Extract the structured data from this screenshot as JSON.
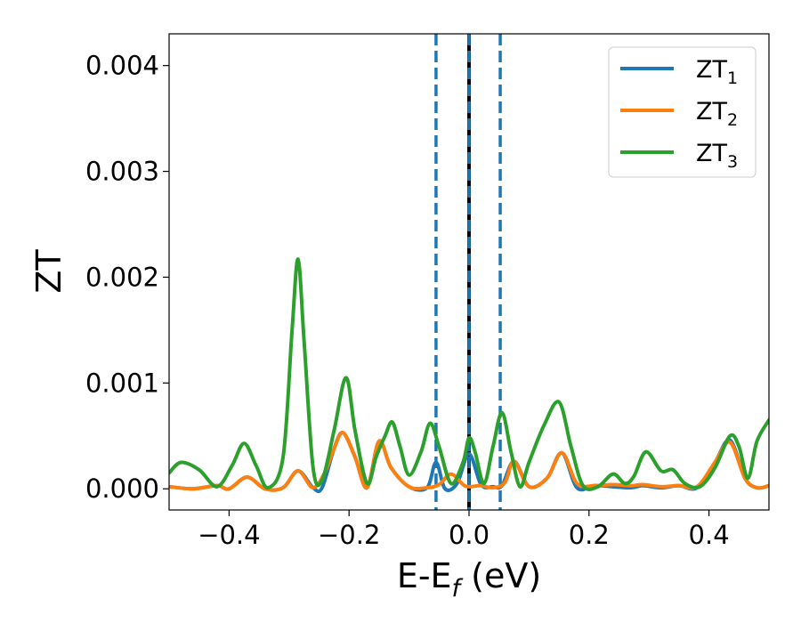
{
  "chart_data": {
    "type": "line",
    "title": "",
    "xlabel": {
      "main": "E-E",
      "sub": "f",
      "suffix": " (eV)"
    },
    "ylabel": "ZT",
    "xlim": [
      -0.5,
      0.5
    ],
    "ylim": [
      -0.0002,
      0.0043
    ],
    "x_ticks": [
      -0.4,
      -0.2,
      0.0,
      0.2,
      0.4
    ],
    "x_tick_labels": [
      "−0.4",
      "−0.2",
      "0.0",
      "0.2",
      "0.4"
    ],
    "y_ticks": [
      0.0,
      0.001,
      0.002,
      0.003,
      0.004
    ],
    "y_tick_labels": [
      "0.000",
      "0.001",
      "0.002",
      "0.003",
      "0.004"
    ],
    "grid": false,
    "legend_position": "top-right",
    "vlines": [
      {
        "x": -0.055,
        "style": "dashed",
        "color": "#1f77b4"
      },
      {
        "x": 0.0,
        "style": "solid",
        "color": "#000000"
      },
      {
        "x": 0.0,
        "style": "dashed",
        "color": "#1f77b4"
      },
      {
        "x": 0.052,
        "style": "dashed",
        "color": "#1f77b4"
      }
    ],
    "series": [
      {
        "name": "ZT",
        "name_sub": "1",
        "color": "#1f77b4",
        "x": [
          -0.5,
          -0.46,
          -0.42,
          -0.4,
          -0.37,
          -0.34,
          -0.31,
          -0.285,
          -0.26,
          -0.245,
          -0.225,
          -0.21,
          -0.19,
          -0.17,
          -0.15,
          -0.13,
          -0.1,
          -0.07,
          -0.055,
          -0.04,
          -0.02,
          0.0,
          0.02,
          0.04,
          0.055,
          0.075,
          0.1,
          0.13,
          0.155,
          0.18,
          0.21,
          0.24,
          0.27,
          0.29,
          0.32,
          0.35,
          0.38,
          0.41,
          0.435,
          0.46,
          0.48,
          0.5
        ],
        "y": [
          2e-05,
          0.0,
          3e-05,
          0.0,
          0.00011,
          0.0,
          1e-05,
          0.00017,
          1e-05,
          1e-05,
          0.00038,
          0.00053,
          0.0003,
          1e-05,
          0.00045,
          0.0002,
          2e-05,
          1e-05,
          0.00025,
          0.0,
          5e-05,
          0.00033,
          4e-05,
          2e-05,
          3e-05,
          0.00026,
          2e-05,
          0.0001,
          0.00034,
          1e-05,
          3e-05,
          2e-05,
          1e-05,
          3e-05,
          1e-05,
          3e-05,
          1e-05,
          0.00025,
          0.00046,
          0.0001,
          1e-05,
          3e-05
        ]
      },
      {
        "name": "ZT",
        "name_sub": "2",
        "color": "#ff7f0e",
        "x": [
          -0.5,
          -0.46,
          -0.42,
          -0.4,
          -0.37,
          -0.34,
          -0.31,
          -0.285,
          -0.26,
          -0.24,
          -0.225,
          -0.21,
          -0.19,
          -0.17,
          -0.15,
          -0.13,
          -0.1,
          -0.07,
          -0.05,
          -0.03,
          -0.01,
          0.0,
          0.02,
          0.04,
          0.06,
          0.075,
          0.1,
          0.13,
          0.155,
          0.18,
          0.21,
          0.24,
          0.27,
          0.29,
          0.32,
          0.35,
          0.38,
          0.41,
          0.435,
          0.46,
          0.48,
          0.5
        ],
        "y": [
          2e-05,
          0.0,
          3e-05,
          0.0,
          0.00011,
          0.0,
          1e-05,
          0.00017,
          1e-05,
          0.00016,
          0.00038,
          0.00053,
          0.0003,
          1e-05,
          0.00045,
          0.0002,
          2e-05,
          1e-05,
          4e-05,
          0.00014,
          4e-05,
          2e-05,
          3e-05,
          1e-05,
          6e-05,
          0.00026,
          2e-05,
          0.0001,
          0.00034,
          5e-05,
          3e-05,
          4e-05,
          3e-05,
          4e-05,
          2e-05,
          3e-05,
          2e-05,
          0.00025,
          0.00044,
          0.0001,
          1e-05,
          3e-05
        ]
      },
      {
        "name": "ZT",
        "name_sub": "3",
        "color": "#2ca02c",
        "x": [
          -0.5,
          -0.48,
          -0.45,
          -0.42,
          -0.395,
          -0.375,
          -0.355,
          -0.335,
          -0.31,
          -0.295,
          -0.285,
          -0.275,
          -0.26,
          -0.245,
          -0.225,
          -0.205,
          -0.19,
          -0.17,
          -0.155,
          -0.14,
          -0.128,
          -0.115,
          -0.1,
          -0.08,
          -0.065,
          -0.05,
          -0.03,
          -0.01,
          0.0,
          0.01,
          0.025,
          0.04,
          0.055,
          0.07,
          0.085,
          0.1,
          0.125,
          0.15,
          0.17,
          0.19,
          0.215,
          0.24,
          0.26,
          0.275,
          0.295,
          0.32,
          0.34,
          0.36,
          0.385,
          0.41,
          0.435,
          0.45,
          0.465,
          0.48,
          0.5
        ],
        "y": [
          0.00015,
          0.00025,
          0.00018,
          2e-05,
          0.00022,
          0.00043,
          0.00022,
          1e-05,
          0.0003,
          0.0015,
          0.00217,
          0.0014,
          0.0002,
          8e-05,
          0.00055,
          0.00105,
          0.00055,
          5e-05,
          0.0003,
          0.0005,
          0.00063,
          0.0004,
          0.00013,
          0.00035,
          0.00062,
          0.0004,
          5e-05,
          0.00025,
          0.00048,
          0.00035,
          5e-05,
          0.0004,
          0.00072,
          0.00035,
          2e-05,
          0.00025,
          0.0006,
          0.00082,
          0.0004,
          3e-05,
          2e-05,
          0.00014,
          5e-05,
          0.00012,
          0.00035,
          0.00017,
          0.00018,
          5e-05,
          2e-05,
          0.0002,
          0.0005,
          0.0004,
          0.0001,
          0.00045,
          0.00065
        ]
      }
    ]
  }
}
